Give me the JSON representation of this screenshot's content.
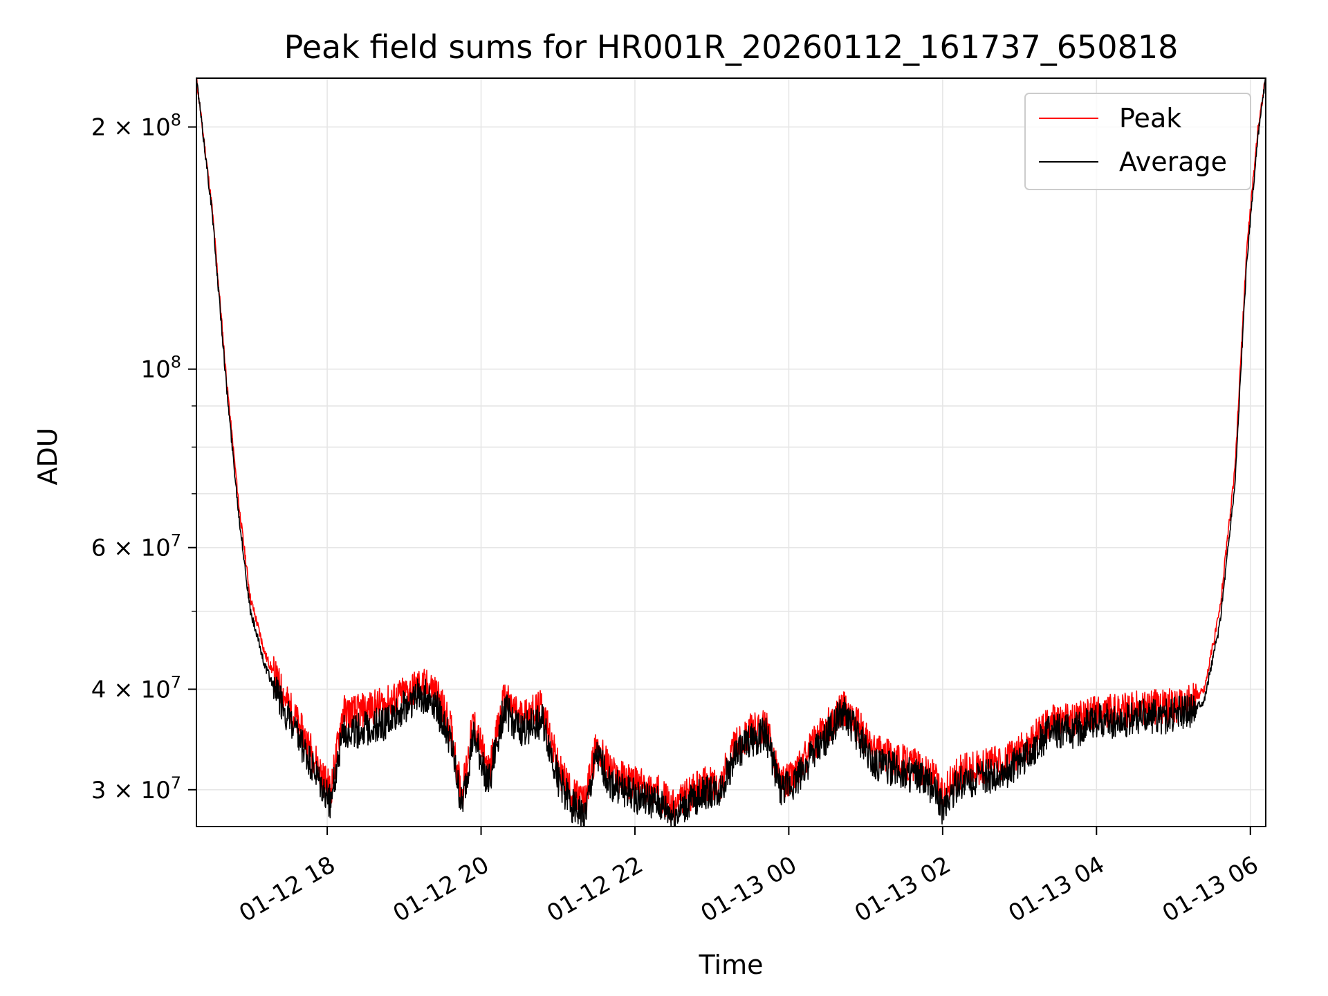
{
  "chart_data": {
    "type": "line",
    "title": "Peak field sums for HR001R_20260112_161737_650818",
    "xlabel": "Time",
    "ylabel": "ADU",
    "y_scale": "log",
    "ylim": [
      27000000,
      230000000
    ],
    "xlim_hours_from_2026_01_12_00": [
      16.3,
      30.2
    ],
    "grid": true,
    "legend_position": "top-right",
    "x_ticks": [
      {
        "label": "01-12 18",
        "hour": 18
      },
      {
        "label": "01-12 20",
        "hour": 20
      },
      {
        "label": "01-12 22",
        "hour": 22
      },
      {
        "label": "01-13 00",
        "hour": 24
      },
      {
        "label": "01-13 02",
        "hour": 26
      },
      {
        "label": "01-13 04",
        "hour": 28
      },
      {
        "label": "01-13 06",
        "hour": 30
      }
    ],
    "y_major_ticks": [
      {
        "base": "3",
        "exp": "7",
        "value": 30000000
      },
      {
        "base": "4",
        "exp": "7",
        "value": 40000000
      },
      {
        "base": "6",
        "exp": "7",
        "value": 60000000
      },
      {
        "base": "",
        "exp": "8",
        "value": 100000000
      },
      {
        "base": "2",
        "exp": "8",
        "value": 200000000
      }
    ],
    "y_minor_ticks": [
      50000000,
      70000000,
      80000000,
      90000000
    ],
    "series": [
      {
        "name": "Peak",
        "color": "#ff0000",
        "hours": [
          16.3,
          16.5,
          16.7,
          16.85,
          17.0,
          17.2,
          17.4,
          17.6,
          17.8,
          17.95,
          18.05,
          18.2,
          18.4,
          18.6,
          18.8,
          19.0,
          19.2,
          19.4,
          19.6,
          19.75,
          19.9,
          20.1,
          20.3,
          20.5,
          20.8,
          21.0,
          21.2,
          21.35,
          21.5,
          21.7,
          22.0,
          22.3,
          22.5,
          22.7,
          22.9,
          23.1,
          23.3,
          23.5,
          23.7,
          23.9,
          24.1,
          24.3,
          24.5,
          24.7,
          24.9,
          25.1,
          25.3,
          25.5,
          25.7,
          25.9,
          26.0,
          26.2,
          26.5,
          26.8,
          27.1,
          27.4,
          27.7,
          28.0,
          28.3,
          28.6,
          28.9,
          29.2,
          29.4,
          29.6,
          29.8,
          29.95,
          30.1,
          30.2
        ],
        "values": [
          230000000,
          160000000,
          95000000,
          68000000,
          52000000,
          44000000,
          40000000,
          36500000,
          33500000,
          31000000,
          30000000,
          37500000,
          37500000,
          38000000,
          38500000,
          39500000,
          40500000,
          40000000,
          36000000,
          29500000,
          36500000,
          31500000,
          39000000,
          37000000,
          38000000,
          32000000,
          29500000,
          29000000,
          34000000,
          31500000,
          30500000,
          29800000,
          28500000,
          29600000,
          30500000,
          30500000,
          34000000,
          35500000,
          36000000,
          30500000,
          31500000,
          34000000,
          36000000,
          38000000,
          36000000,
          33500000,
          33000000,
          32500000,
          32000000,
          31000000,
          29500000,
          31500000,
          32000000,
          32500000,
          34000000,
          36500000,
          36500000,
          37500000,
          37500000,
          38000000,
          38000000,
          38500000,
          40000000,
          50000000,
          75000000,
          140000000,
          200000000,
          230000000
        ]
      },
      {
        "name": "Average",
        "color": "#000000",
        "hours": [
          16.3,
          16.5,
          16.7,
          16.85,
          17.0,
          17.2,
          17.4,
          17.6,
          17.8,
          17.95,
          18.05,
          18.2,
          18.4,
          18.6,
          18.8,
          19.0,
          19.2,
          19.4,
          19.6,
          19.75,
          19.9,
          20.1,
          20.3,
          20.5,
          20.8,
          21.0,
          21.2,
          21.35,
          21.5,
          21.7,
          22.0,
          22.3,
          22.5,
          22.7,
          22.9,
          23.1,
          23.3,
          23.5,
          23.7,
          23.9,
          24.1,
          24.3,
          24.5,
          24.7,
          24.9,
          25.1,
          25.3,
          25.5,
          25.7,
          25.9,
          26.0,
          26.2,
          26.5,
          26.8,
          27.1,
          27.4,
          27.7,
          28.0,
          28.3,
          28.6,
          28.9,
          29.2,
          29.4,
          29.6,
          29.8,
          29.95,
          30.1,
          30.2
        ],
        "values": [
          230000000,
          158000000,
          93000000,
          66000000,
          50000000,
          42500000,
          38500000,
          35000000,
          32000000,
          29800000,
          29000000,
          35500000,
          35500000,
          36000000,
          36500000,
          38000000,
          39500000,
          38500000,
          34500000,
          28500000,
          35000000,
          30500000,
          38000000,
          35500000,
          36500000,
          31000000,
          28500000,
          27800000,
          33000000,
          30500000,
          29500000,
          28800000,
          27800000,
          28800000,
          29800000,
          29800000,
          33000000,
          34500000,
          35200000,
          29800000,
          30800000,
          33000000,
          35000000,
          37500000,
          35000000,
          32500000,
          32000000,
          31500000,
          31000000,
          30000000,
          28500000,
          30500000,
          31000000,
          31500000,
          33000000,
          35500000,
          35500000,
          36500000,
          36500000,
          37000000,
          37000000,
          37500000,
          38800000,
          48000000,
          72000000,
          135000000,
          195000000,
          230000000
        ]
      }
    ]
  }
}
